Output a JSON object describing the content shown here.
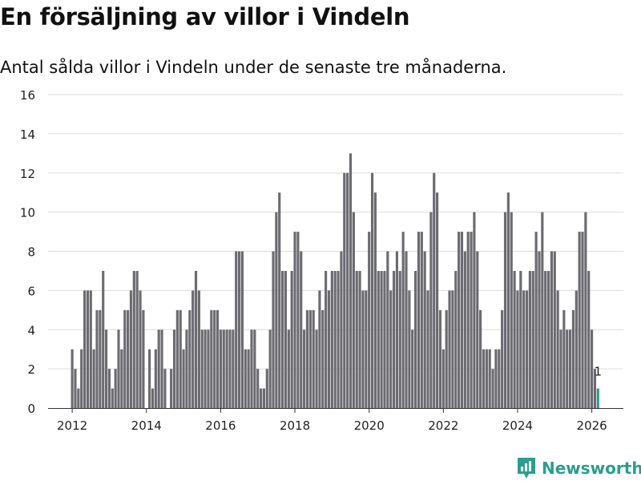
{
  "header": {
    "title": "En försäljning av villor i Vindeln",
    "subtitle": "Antal sålda villor i Vindeln under de senaste tre månaderna."
  },
  "brand": {
    "name": "Newsworthy",
    "icon": "bar-chart-logo-icon",
    "color": "#2a9d8f"
  },
  "chart_data": {
    "type": "bar",
    "title": "En försäljning av villor i Vindeln",
    "subtitle": "Antal sålda villor i Vindeln under de senaste tre månaderna.",
    "xlabel": "",
    "ylabel": "",
    "ylim": [
      0,
      16
    ],
    "yticks": [
      0,
      2,
      4,
      6,
      8,
      10,
      12,
      14,
      16
    ],
    "xticks": [
      2012,
      2014,
      2016,
      2018,
      2020,
      2022,
      2024,
      2026
    ],
    "xlim": [
      2011.35,
      2026.85
    ],
    "grid": true,
    "start": 2012.0,
    "step": 0.08333,
    "colors": {
      "bars": "#6c6b70",
      "highlight": "#2a9d8f",
      "grid": "#dddddd"
    },
    "values": [
      3,
      2,
      1,
      3,
      6,
      6,
      6,
      3,
      5,
      5,
      7,
      4,
      2,
      1,
      2,
      4,
      3,
      5,
      5,
      6,
      7,
      7,
      6,
      5,
      0,
      3,
      1,
      3,
      4,
      4,
      2,
      0,
      2,
      4,
      5,
      5,
      3,
      4,
      5,
      6,
      7,
      6,
      4,
      4,
      4,
      5,
      5,
      5,
      4,
      4,
      4,
      4,
      4,
      8,
      8,
      8,
      3,
      3,
      4,
      4,
      2,
      1,
      1,
      2,
      4,
      8,
      10,
      11,
      7,
      7,
      4,
      7,
      9,
      9,
      8,
      4,
      5,
      5,
      5,
      4,
      6,
      5,
      7,
      6,
      7,
      7,
      7,
      8,
      12,
      12,
      13,
      10,
      7,
      7,
      6,
      6,
      9,
      12,
      11,
      7,
      7,
      7,
      8,
      6,
      7,
      8,
      7,
      9,
      8,
      6,
      4,
      7,
      9,
      9,
      8,
      6,
      10,
      12,
      11,
      5,
      3,
      5,
      6,
      6,
      7,
      9,
      9,
      8,
      9,
      9,
      10,
      8,
      5,
      3,
      3,
      3,
      2,
      3,
      3,
      5,
      10,
      11,
      10,
      7,
      6,
      7,
      6,
      6,
      7,
      7,
      9,
      8,
      10,
      7,
      7,
      8,
      8,
      6,
      4,
      5,
      4,
      4,
      5,
      6,
      9,
      9,
      10,
      7,
      4,
      2
    ],
    "highlight": {
      "value": 1,
      "label": "1"
    }
  }
}
